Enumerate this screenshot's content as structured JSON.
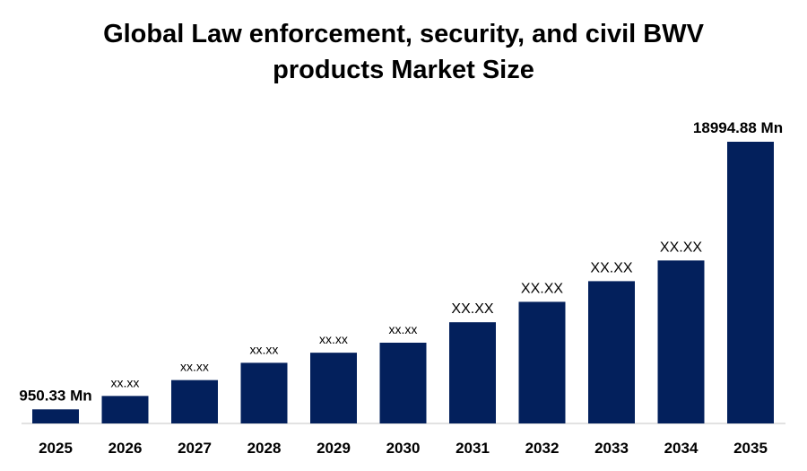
{
  "title_line1": "Global Law enforcement, security, and civil BWV",
  "title_line2": "products Market Size",
  "colors": {
    "bar": "#03205c",
    "axis": "#d9d9d9"
  },
  "chart_data": {
    "type": "bar",
    "title": "Global Law enforcement, security, and civil BWV products Market Size",
    "categories": [
      "2025",
      "2026",
      "2027",
      "2028",
      "2029",
      "2030",
      "2031",
      "2032",
      "2033",
      "2034",
      "2035"
    ],
    "values": [
      950.33,
      1854,
      2924,
      4089,
      4770,
      5445,
      6824,
      8201,
      9594,
      10989,
      18994.88
    ],
    "labels": [
      "950.33 Mn",
      "xx.xx",
      "xx.xx",
      "xx.xx",
      "xx.xx",
      "xx.xx",
      "XX.XX",
      "XX.XX",
      "XX.XX",
      "XX.XX",
      "18994.88 Mn"
    ],
    "xlabel": "",
    "ylabel": "",
    "grid": false,
    "legend": "none"
  }
}
